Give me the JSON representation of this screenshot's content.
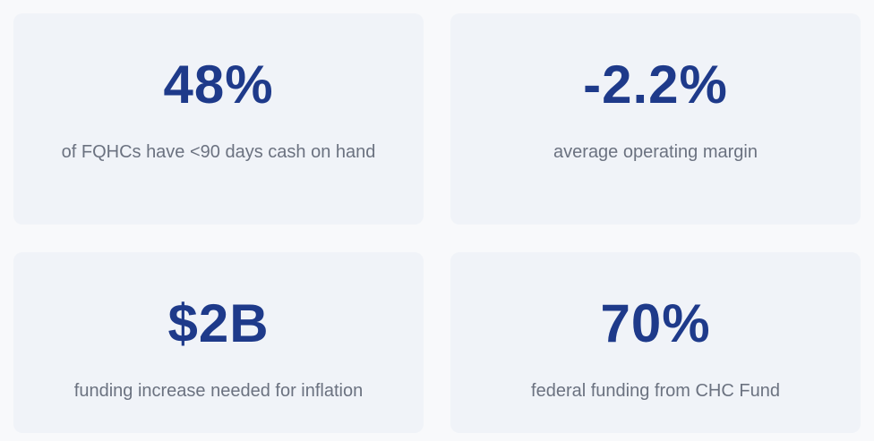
{
  "cards": [
    {
      "value": "48%",
      "label": "of FQHCs have <90 days cash on hand"
    },
    {
      "value": "-2.2%",
      "label": "average operating margin"
    },
    {
      "value": "$2B",
      "label": "funding increase needed for inflation"
    },
    {
      "value": "70%",
      "label": "federal funding from CHC Fund"
    }
  ]
}
